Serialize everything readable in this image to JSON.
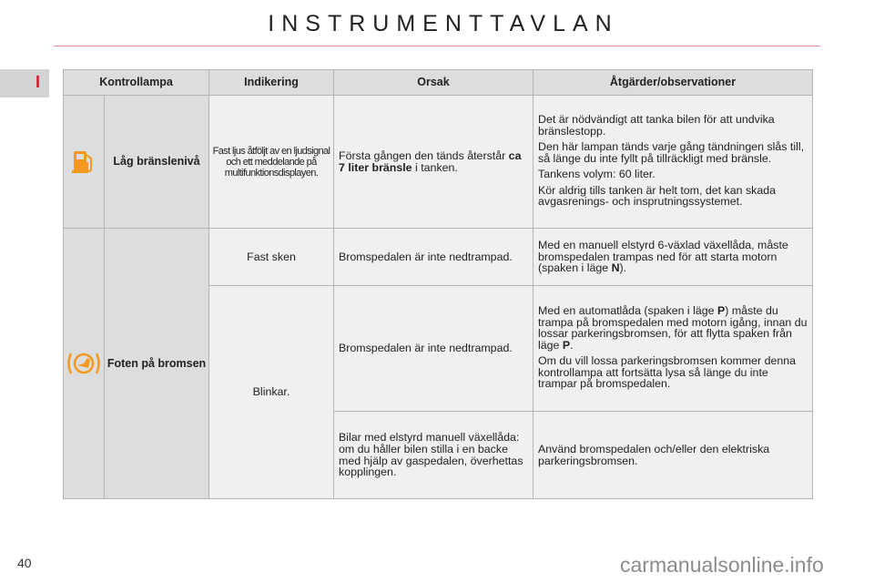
{
  "page": {
    "title": "INSTRUMENTTAVLAN",
    "section_tab": "I",
    "page_number": "40",
    "watermark": "carmanualsonline.info"
  },
  "table": {
    "headers": [
      "Kontrollampa",
      "Indikering",
      "Orsak",
      "Åtgärder/observationer"
    ],
    "low_fuel": {
      "icon": "fuel-pump-icon",
      "icon_color": "#f39a1e",
      "name": "Låg bränslenivå",
      "indication": "Fast ljus åtföljt av en ljudsignal och ett meddelande på multifunktionsdisplayen.",
      "cause_pre": "Första gången den tänds återstår ",
      "cause_bold": "ca 7 liter bränsle",
      "cause_post": " i tanken.",
      "actions": [
        "Det är nödvändigt att tanka bilen för att undvika bränslestopp.",
        "Den här lampan tänds varje gång tändningen slås till, så länge du inte fyllt på tillräckligt med bränsle.",
        "Tankens volym: 60 liter.",
        "Kör aldrig tills tanken är helt tom, det kan skada avgasrenings- och insprutningssystemet."
      ]
    },
    "brake": {
      "icon": "foot-on-brake-icon",
      "icon_color": "#f39a1e",
      "name": "Foten på bromsen",
      "rows": [
        {
          "indication": "Fast sken",
          "cause": "Bromspedalen är inte nedtrampad.",
          "action_parts": [
            "Med en manuell elstyrd 6-växlad växellåda, måste bromspedalen trampas ned för att starta motorn (spaken i läge ",
            "N",
            ")."
          ]
        },
        {
          "indication": "Blinkar.",
          "cause": "Bromspedalen är inte nedtrampad.",
          "action_parts": [
            "Med en automatlåda (spaken i läge ",
            "P",
            ") måste du trampa på bromspedalen med motorn igång, innan du lossar parkeringsbromsen, för att flytta spaken från läge ",
            "P",
            "."
          ],
          "action_extra": "Om du vill lossa parkeringsbromsen kommer denna kontrollampa att fortsätta lysa så länge du inte trampar på bromspedalen."
        },
        {
          "cause": "Bilar med elstyrd manuell växellåda: om du håller bilen stilla i en backe med hjälp av gaspedalen, överhettas kopplingen.",
          "action": "Använd bromspedalen och/eller den elektriska parkeringsbromsen."
        }
      ]
    }
  }
}
